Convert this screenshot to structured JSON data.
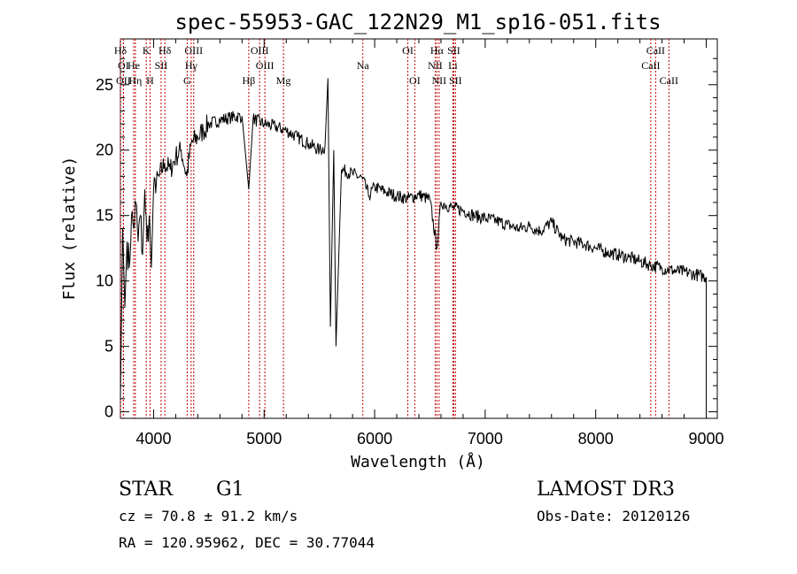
{
  "chart_data": {
    "type": "line",
    "title": "spec-55953-GAC_122N29_M1_sp16-051.fits",
    "xlabel": "Wavelength (Å)",
    "ylabel": "Flux (relative)",
    "xlim": [
      3700,
      9100
    ],
    "ylim": [
      -0.5,
      28.5
    ],
    "xticks": [
      4000,
      5000,
      6000,
      7000,
      8000,
      9000
    ],
    "yticks": [
      0,
      5,
      10,
      15,
      20,
      25
    ],
    "series": [
      {
        "name": "flux",
        "x": [
          3700,
          3720,
          3740,
          3760,
          3780,
          3800,
          3820,
          3840,
          3860,
          3880,
          3900,
          3920,
          3940,
          3960,
          3980,
          4000,
          4050,
          4100,
          4150,
          4200,
          4250,
          4300,
          4340,
          4400,
          4450,
          4500,
          4600,
          4700,
          4800,
          4861,
          4900,
          5000,
          5100,
          5200,
          5300,
          5400,
          5500,
          5550,
          5577,
          5600,
          5630,
          5650,
          5700,
          5800,
          5890,
          5950,
          6000,
          6100,
          6200,
          6300,
          6400,
          6500,
          6563,
          6600,
          6700,
          6800,
          6900,
          7000,
          7100,
          7200,
          7300,
          7400,
          7500,
          7600,
          7700,
          7800,
          7900,
          8000,
          8100,
          8200,
          8300,
          8400,
          8500,
          8600,
          8700,
          8800,
          8900,
          9000
        ],
        "y": [
          1,
          14,
          8,
          13,
          11,
          15,
          14,
          16,
          13,
          15,
          12,
          17,
          13,
          15,
          11,
          17,
          18,
          19,
          18.5,
          19.5,
          20,
          18,
          20.5,
          21,
          21.5,
          22,
          22.3,
          22.5,
          22.6,
          17,
          22.4,
          22,
          21.8,
          21.5,
          21,
          20.5,
          20,
          20.2,
          25.5,
          6.5,
          20,
          5,
          18.5,
          18.2,
          17.8,
          16.5,
          17.2,
          16.8,
          16.5,
          16.3,
          16.6,
          16.2,
          12.5,
          16,
          15.6,
          15.4,
          15,
          14.8,
          14.6,
          14.3,
          14,
          14.2,
          13.8,
          14.5,
          13.2,
          13,
          12.8,
          12.5,
          12.2,
          12,
          11.8,
          11.5,
          11.2,
          11,
          10.8,
          10.7,
          10.5,
          10.3
        ]
      }
    ],
    "spectral_lines": [
      {
        "label": "Hδ",
        "lambda": 3700,
        "row": 1
      },
      {
        "label": "K",
        "lambda": 3934,
        "row": 1
      },
      {
        "label": "Hδ",
        "lambda": 4102,
        "row": 1
      },
      {
        "label": "OIII",
        "lambda": 4363,
        "row": 1
      },
      {
        "label": "OIII",
        "lambda": 4959,
        "row": 1
      },
      {
        "label": "OI",
        "lambda": 6300,
        "row": 1
      },
      {
        "label": "Hα",
        "lambda": 6563,
        "row": 1
      },
      {
        "label": "SII",
        "lambda": 6716,
        "row": 1
      },
      {
        "label": "CaII",
        "lambda": 8542,
        "row": 1
      },
      {
        "label": "OI",
        "lambda": 3727,
        "row": 2
      },
      {
        "label": "He",
        "lambda": 3820,
        "row": 2
      },
      {
        "label": "SII",
        "lambda": 4068,
        "row": 2
      },
      {
        "label": "Hγ",
        "lambda": 4340,
        "row": 2
      },
      {
        "label": "OIII",
        "lambda": 5007,
        "row": 2
      },
      {
        "label": "Na",
        "lambda": 5893,
        "row": 2
      },
      {
        "label": "NII",
        "lambda": 6548,
        "row": 2
      },
      {
        "label": "Li",
        "lambda": 6708,
        "row": 2
      },
      {
        "label": "CaII",
        "lambda": 8498,
        "row": 2
      },
      {
        "label": "OII",
        "lambda": 3727,
        "row": 3
      },
      {
        "label": "Hη",
        "lambda": 3835,
        "row": 3
      },
      {
        "label": "H",
        "lambda": 3968,
        "row": 3
      },
      {
        "label": "G",
        "lambda": 4304,
        "row": 3
      },
      {
        "label": "Hβ",
        "lambda": 4861,
        "row": 3
      },
      {
        "label": "Mg",
        "lambda": 5175,
        "row": 3
      },
      {
        "label": "OI",
        "lambda": 6363,
        "row": 3
      },
      {
        "label": "NII",
        "lambda": 6583,
        "row": 3
      },
      {
        "label": "SII",
        "lambda": 6731,
        "row": 3
      },
      {
        "label": "CaII",
        "lambda": 8662,
        "row": 3
      }
    ]
  },
  "info": {
    "class": "STAR",
    "subclass": "G1",
    "survey": "LAMOST DR3",
    "cz": "cz = 70.8 ± 91.2 km/s",
    "obs_date": "Obs-Date: 20120126",
    "radec": "RA = 120.95962, DEC =  30.77044"
  }
}
